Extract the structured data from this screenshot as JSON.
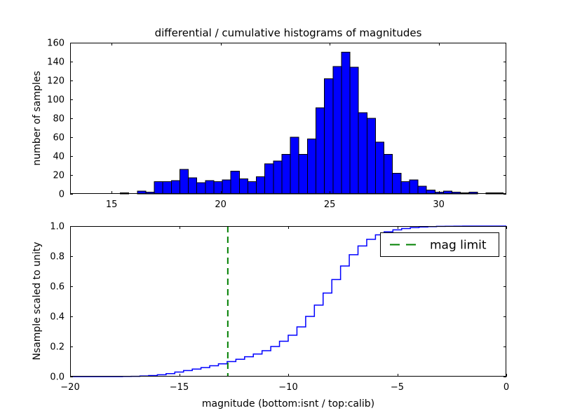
{
  "title": "differential / cumulative histograms of magnitudes",
  "colors": {
    "hist_fill": "#0000ff",
    "hist_edge": "#000000",
    "curve": "#0000ff",
    "mag_limit_line": "#008000",
    "axis": "#000000",
    "background": "#ffffff"
  },
  "legend": {
    "label": "mag limit"
  },
  "chart_data": [
    {
      "type": "bar",
      "subplot": "top",
      "title": "differential / cumulative histograms of magnitudes",
      "ylabel": "number of samples",
      "xlim": [
        13.1,
        33.1
      ],
      "ylim": [
        0,
        160
      ],
      "xticks": [
        15,
        20,
        25,
        30
      ],
      "xtick_labels": [
        "15",
        "20",
        "25",
        "30"
      ],
      "yticks": [
        0,
        20,
        40,
        60,
        80,
        100,
        120,
        140,
        160
      ],
      "ytick_labels": [
        "0",
        "20",
        "40",
        "60",
        "80",
        "100",
        "120",
        "140",
        "160"
      ],
      "grid": false,
      "bin_start": 15.4,
      "bin_width": 0.39,
      "counts": [
        1,
        0,
        3,
        2,
        13,
        13,
        14,
        26,
        17,
        12,
        14,
        13,
        15,
        24,
        16,
        13,
        18,
        32,
        35,
        42,
        60,
        42,
        58,
        91,
        122,
        135,
        150,
        134,
        86,
        80,
        55,
        42,
        22,
        13,
        15,
        8,
        4,
        2,
        3,
        2,
        1,
        2,
        0,
        1,
        1
      ]
    },
    {
      "type": "line",
      "style": "cumulative-step",
      "subplot": "bottom",
      "ylabel": "Nsample scaled to unity",
      "xlabel": "magnitude (bottom:isnt / top:calib)",
      "xlim": [
        -20,
        0
      ],
      "ylim": [
        0,
        1
      ],
      "xticks": [
        -20,
        -15,
        -10,
        -5,
        0
      ],
      "xtick_labels": [
        "−20",
        "−15",
        "−10",
        "−5",
        "0"
      ],
      "yticks": [
        0,
        0.2,
        0.4,
        0.6,
        0.8,
        1.0
      ],
      "ytick_labels": [
        "0.0",
        "0.2",
        "0.4",
        "0.6",
        "0.8",
        "1.0"
      ],
      "grid": false,
      "legend_entries": [
        "mag limit"
      ],
      "legend_position": "upper right",
      "mag_limit_x": -12.77,
      "cumulative_points": [
        [
          -17.6,
          0.001
        ],
        [
          -17.2,
          0.002
        ],
        [
          -16.8,
          0.004
        ],
        [
          -16.4,
          0.007
        ],
        [
          -16.0,
          0.012
        ],
        [
          -15.6,
          0.02
        ],
        [
          -15.2,
          0.03
        ],
        [
          -14.8,
          0.04
        ],
        [
          -14.4,
          0.05
        ],
        [
          -14.0,
          0.06
        ],
        [
          -13.6,
          0.072
        ],
        [
          -13.2,
          0.085
        ],
        [
          -12.8,
          0.1
        ],
        [
          -12.4,
          0.115
        ],
        [
          -12.0,
          0.132
        ],
        [
          -11.6,
          0.15
        ],
        [
          -11.2,
          0.172
        ],
        [
          -10.8,
          0.2
        ],
        [
          -10.4,
          0.235
        ],
        [
          -10.0,
          0.275
        ],
        [
          -9.6,
          0.33
        ],
        [
          -9.2,
          0.4
        ],
        [
          -8.8,
          0.475
        ],
        [
          -8.4,
          0.555
        ],
        [
          -8.0,
          0.645
        ],
        [
          -7.6,
          0.735
        ],
        [
          -7.2,
          0.81
        ],
        [
          -6.8,
          0.868
        ],
        [
          -6.4,
          0.912
        ],
        [
          -6.0,
          0.942
        ],
        [
          -5.6,
          0.962
        ],
        [
          -5.2,
          0.975
        ],
        [
          -4.8,
          0.984
        ],
        [
          -4.4,
          0.99
        ],
        [
          -4.0,
          0.994
        ],
        [
          -3.6,
          0.9965
        ],
        [
          -3.2,
          0.998
        ],
        [
          -2.8,
          0.9988
        ],
        [
          -2.4,
          0.9994
        ],
        [
          -2.0,
          1.0
        ]
      ]
    }
  ]
}
